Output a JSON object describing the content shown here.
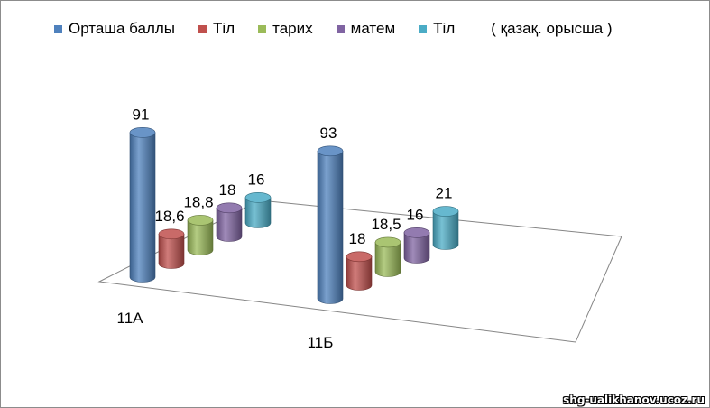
{
  "chart_data": {
    "type": "bar",
    "style": "3d-cylinder",
    "categories": [
      "11А",
      "11Б"
    ],
    "series": [
      {
        "name": "Орташа баллы",
        "values": [
          91,
          93
        ],
        "labels": [
          "91",
          "93"
        ],
        "color": "#4f81bd"
      },
      {
        "name": "Тіл",
        "values": [
          18.6,
          18
        ],
        "labels": [
          "18,6",
          "18"
        ],
        "color": "#c0504d"
      },
      {
        "name": "тарих",
        "values": [
          18.8,
          18.5
        ],
        "labels": [
          "18,8",
          "18,5"
        ],
        "color": "#9bbb59"
      },
      {
        "name": "матем",
        "values": [
          18,
          16
        ],
        "labels": [
          "18",
          "16"
        ],
        "color": "#8064a2"
      },
      {
        "name": "Тіл",
        "values": [
          16,
          21
        ],
        "labels": [
          "16",
          "21"
        ],
        "color": "#4bacc6"
      }
    ],
    "legend_note": "( қазақ. орысша )",
    "legend_position": "top",
    "grid": false
  },
  "watermark": "shg-ualikhanov.ucoz.ru"
}
